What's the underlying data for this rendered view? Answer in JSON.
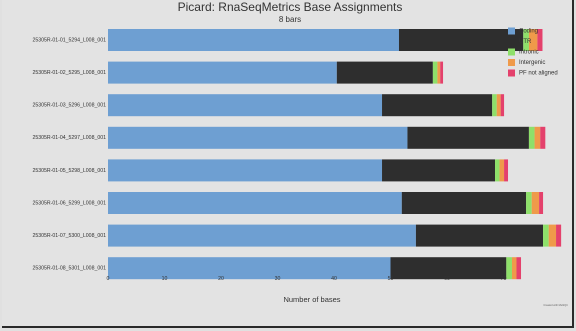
{
  "chart_data": {
    "type": "bar",
    "orientation": "horizontal",
    "stacked": true,
    "title": "Picard: RnaSeqMetrics Base Assignments",
    "subtitle": "8 bars",
    "xlabel": "Number of bases",
    "xlim": [
      0,
      80
    ],
    "xticks": [
      "0",
      "10",
      "20",
      "30",
      "40",
      "50",
      "60",
      "70"
    ],
    "grid": false,
    "legend_position": "top-right",
    "categories": [
      "25305R-01-01_5294_L008_001",
      "25305R-01-02_5295_L008_001",
      "25305R-01-03_5296_L008_001",
      "25305R-01-04_5297_L008_001",
      "25305R-01-05_5298_L008_001",
      "25305R-01-06_5299_L008_001",
      "25305R-01-07_5300_L008_001",
      "25305R-01-08_5301_L008_001"
    ],
    "series": [
      {
        "name": "Coding",
        "color": "#6e9fd2",
        "values": [
          51.5,
          40.5,
          48.5,
          53,
          48.5,
          52,
          54.5,
          50
        ]
      },
      {
        "name": "UTR",
        "color": "#2e2e2e",
        "values": [
          22,
          17,
          19.5,
          21.5,
          20,
          22,
          22.5,
          20.5
        ]
      },
      {
        "name": "Intronic",
        "color": "#8ee06a",
        "values": [
          1,
          0.8,
          0.8,
          1,
          0.8,
          1,
          1,
          1
        ]
      },
      {
        "name": "Intergenic",
        "color": "#ef9a4a",
        "values": [
          1.5,
          0.5,
          0.7,
          1,
          0.8,
          1.3,
          1.3,
          0.8
        ]
      },
      {
        "name": "PF not aligned",
        "color": "#e4416c",
        "values": [
          0.9,
          0.5,
          0.6,
          0.9,
          0.7,
          0.7,
          0.9,
          0.8
        ]
      }
    ],
    "credit": "Created with MultiQC"
  }
}
